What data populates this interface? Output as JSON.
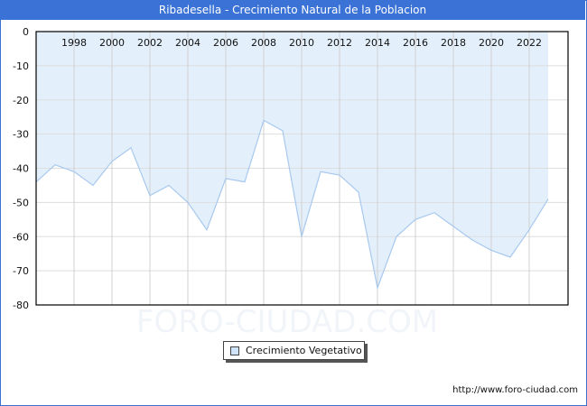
{
  "header": {
    "title": "Ribadesella - Crecimiento Natural de la Poblacion"
  },
  "legend": {
    "label": "Crecimiento Vegetativo",
    "swatch_color": "#cfe4fa"
  },
  "watermark": "FORO-CIUDAD.COM",
  "footer": {
    "url": "http://www.foro-ciudad.com"
  },
  "colors": {
    "title_bar": "#3a72d6",
    "fill": "#e3f0fc",
    "line": "#a8c8ee",
    "grid": "#d0d0d0"
  },
  "chart_data": {
    "type": "area",
    "title": "Ribadesella - Crecimiento Natural de la Poblacion",
    "xlabel": "",
    "ylabel": "",
    "x": [
      1996,
      1997,
      1998,
      1999,
      2000,
      2001,
      2002,
      2003,
      2004,
      2005,
      2006,
      2007,
      2008,
      2009,
      2010,
      2011,
      2012,
      2013,
      2014,
      2015,
      2016,
      2017,
      2018,
      2019,
      2020,
      2021,
      2022,
      2023
    ],
    "series": [
      {
        "name": "Crecimiento Vegetativo",
        "values": [
          -44,
          -39,
          -41,
          -45,
          -38,
          -34,
          -48,
          -45,
          -50,
          -58,
          -43,
          -44,
          -26,
          -29,
          -60,
          -41,
          -42,
          -47,
          -75,
          -60,
          -55,
          -53,
          -57,
          -61,
          -64,
          -66,
          -58,
          -49
        ]
      }
    ],
    "x_tick_labels": [
      "1998",
      "2000",
      "2002",
      "2004",
      "2006",
      "2008",
      "2010",
      "2012",
      "2014",
      "2016",
      "2018",
      "2020",
      "2022"
    ],
    "y_tick_labels": [
      "0",
      "-10",
      "-20",
      "-30",
      "-40",
      "-50",
      "-60",
      "-70",
      "-80"
    ],
    "ylim": [
      -80,
      0
    ],
    "grid": true,
    "legend_position": "bottom-center"
  }
}
